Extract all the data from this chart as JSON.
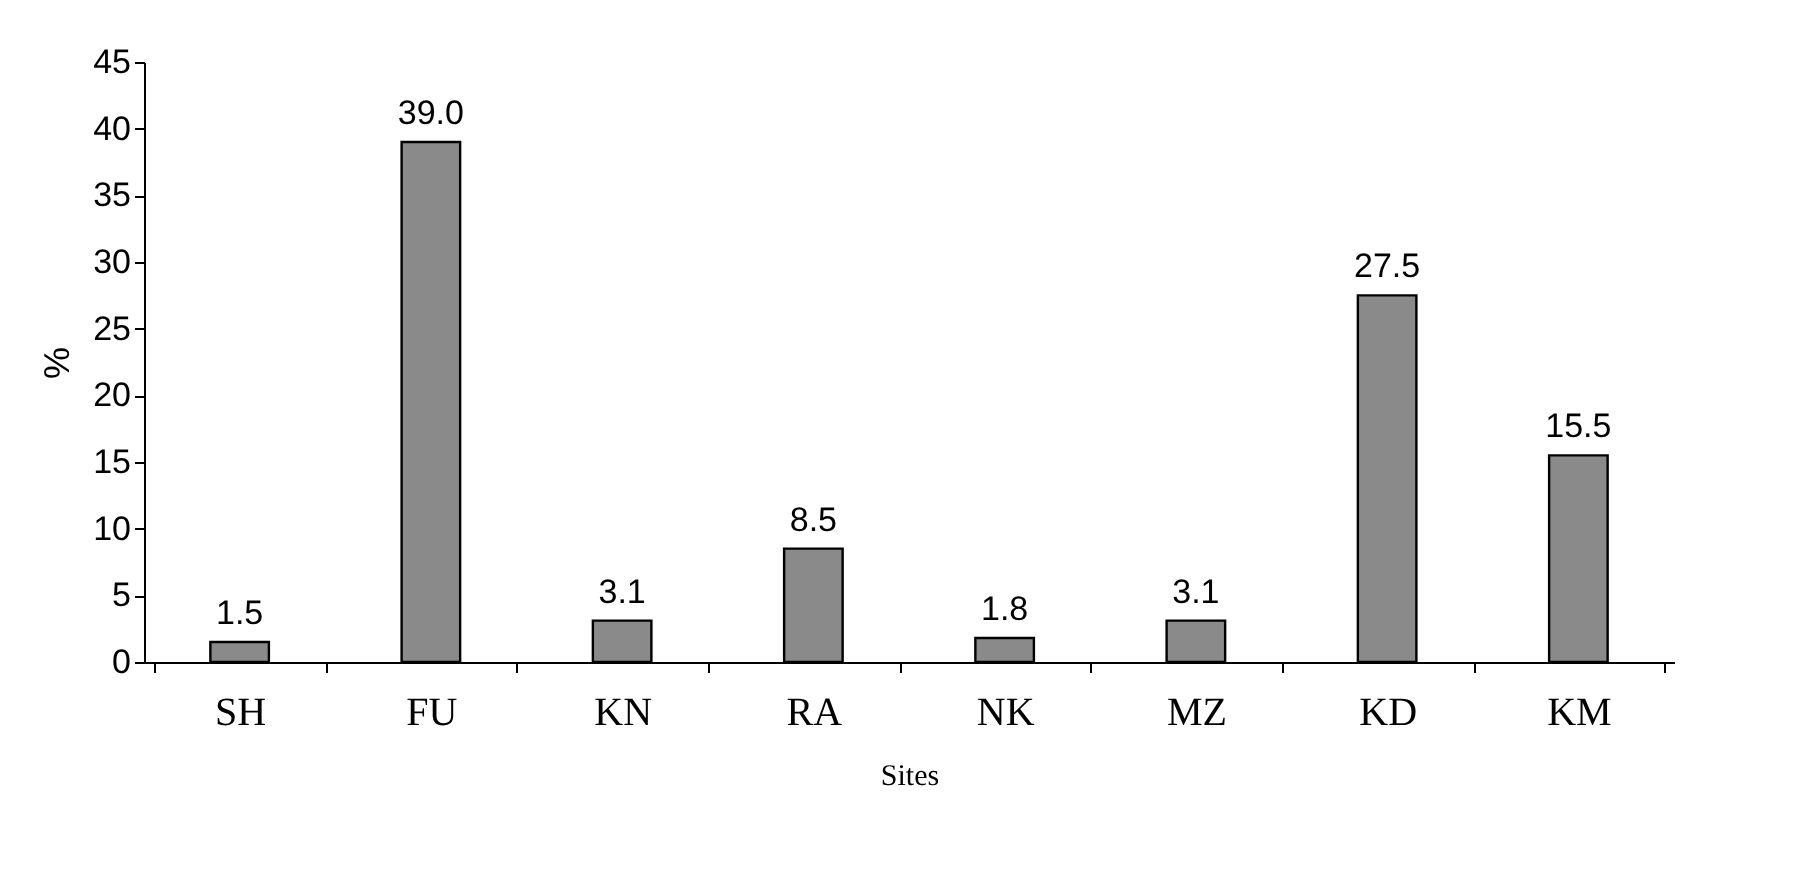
{
  "chart_data": {
    "type": "bar",
    "xlabel": "Sites",
    "ylabel": "%",
    "categories": [
      "SH",
      "FU",
      "KN",
      "RA",
      "NK",
      "MZ",
      "KD",
      "KM"
    ],
    "values": [
      1.5,
      39.0,
      3.1,
      8.5,
      1.8,
      3.1,
      27.5,
      15.5
    ],
    "value_labels": [
      "1.5",
      "39.0",
      "3.1",
      "8.5",
      "1.8",
      "3.1",
      "27.5",
      "15.5"
    ],
    "color": "#8a8a8a",
    "ylim": [
      0,
      45
    ],
    "yticks": [
      0,
      5,
      10,
      15,
      20,
      25,
      30,
      35,
      40,
      45
    ],
    "grid": false
  }
}
